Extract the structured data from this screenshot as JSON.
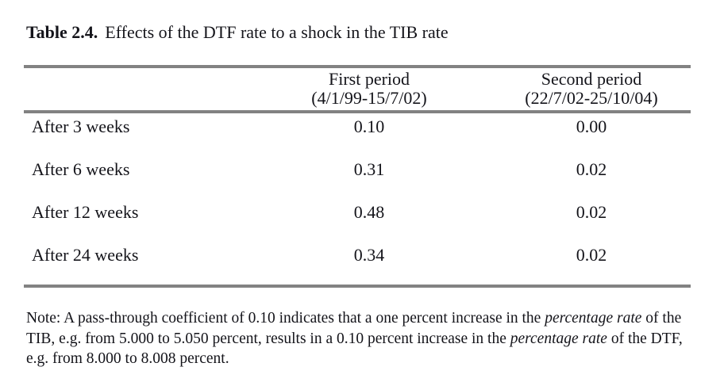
{
  "caption": {
    "label": "Table 2.4.",
    "text": "Effects of the DTF rate to a shock in the TIB rate"
  },
  "table": {
    "columns": [
      {
        "title": "First period",
        "subtitle": "(4/1/99-15/7/02)"
      },
      {
        "title": "Second period",
        "subtitle": "(22/7/02-25/10/04)"
      }
    ],
    "rows": [
      {
        "label": "After 3 weeks",
        "first": "0.10",
        "second": "0.00"
      },
      {
        "label": "After 6 weeks",
        "first": "0.31",
        "second": "0.02"
      },
      {
        "label": "After 12 weeks",
        "first": "0.48",
        "second": "0.02"
      },
      {
        "label": "After 24 weeks",
        "first": "0.34",
        "second": "0.02"
      }
    ]
  },
  "note": {
    "part1": "Note: A pass-through coefficient of 0.10 indicates that a one percent increase in the ",
    "italic1": "percentage rate",
    "part2": " of the TIB, e.g. from 5.000 to 5.050 percent, results in a 0.10 percent increase in the ",
    "italic2": "percentage rate",
    "part3": " of the DTF, e.g. from 8.000 to 8.008 percent."
  },
  "colors": {
    "rule": "#828282",
    "text": "#14141a",
    "background": "#ffffff"
  },
  "chart_data": {
    "type": "table",
    "title": "Table 2.4. Effects of the DTF rate to a shock in the TIB rate",
    "categories": [
      "After 3 weeks",
      "After 6 weeks",
      "After 12 weeks",
      "After 24 weeks"
    ],
    "series": [
      {
        "name": "First period (4/1/99-15/7/02)",
        "values": [
          0.1,
          0.31,
          0.48,
          0.34
        ]
      },
      {
        "name": "Second period (22/7/02-25/10/04)",
        "values": [
          0.0,
          0.02,
          0.02,
          0.02
        ]
      }
    ]
  }
}
